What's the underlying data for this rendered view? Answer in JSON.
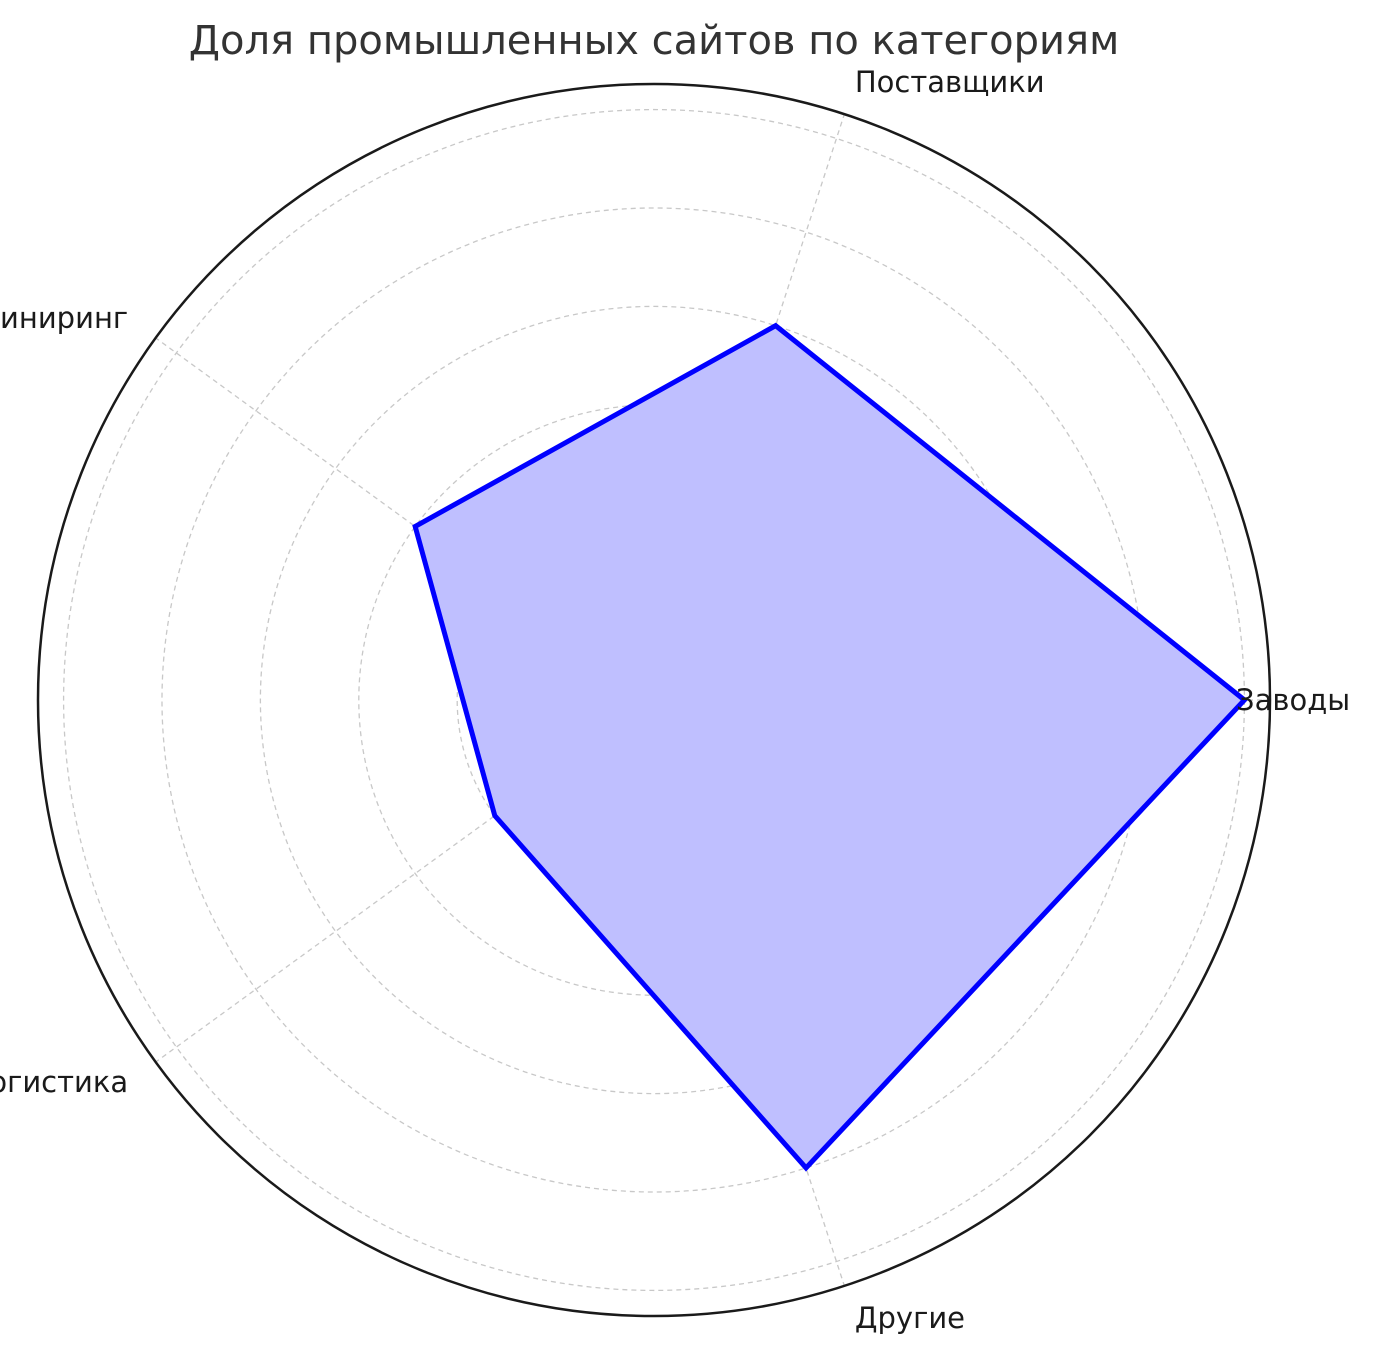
{
  "chart_data": {
    "type": "radar",
    "title": "Доля промышленных сайтов по категориям",
    "categories": [
      "Заводы",
      "Поставщики",
      "Инжиниринг",
      "Логистика",
      "Другие"
    ],
    "values": [
      30,
      20,
      15,
      10,
      25
    ],
    "rlim": [
      0,
      31.3
    ],
    "r_gridlines": [
      5,
      10,
      15,
      20,
      25,
      30
    ],
    "grid": true,
    "grid_style": "dashed",
    "colors": {
      "line": "#0000ff",
      "fill": "#bfbfff",
      "grid": "#c8c8c8",
      "frame": "#1a1a1a"
    }
  }
}
